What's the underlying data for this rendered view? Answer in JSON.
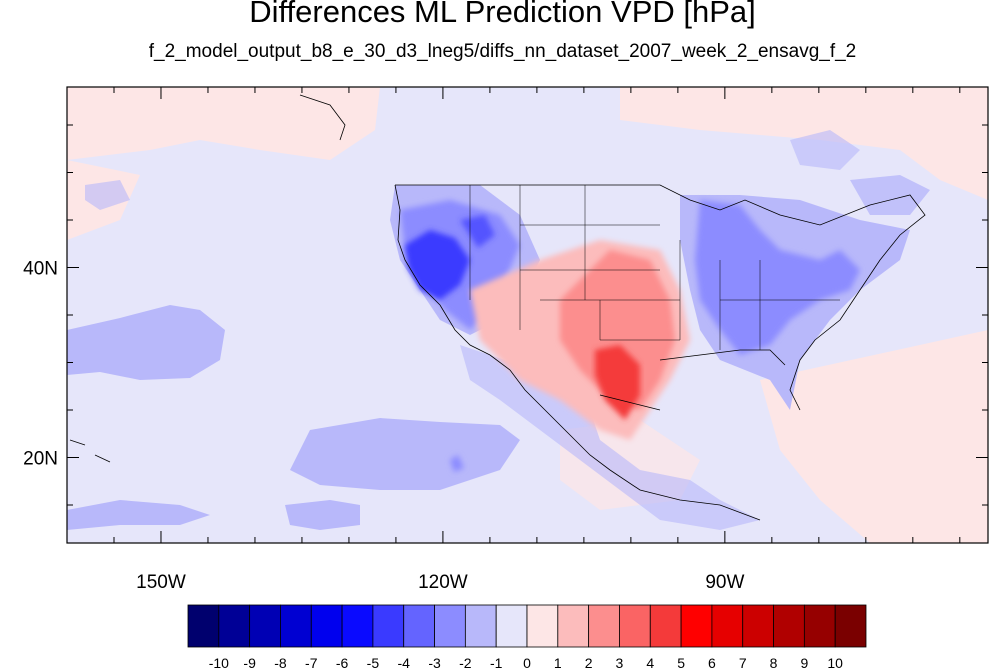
{
  "title": "Differences ML Prediction VPD [hPa]",
  "subtitle": "f_2_model_output_b8_e_30_d3_lneg5/diffs_nn_dataset_2007_week_2_ensavg_f_2",
  "map": {
    "lon_range": [
      -160,
      -62
    ],
    "lat_range": [
      11,
      59
    ],
    "lon_ticks": [
      {
        "value": -150,
        "label": "150W"
      },
      {
        "value": -120,
        "label": "120W"
      },
      {
        "value": -90,
        "label": "90W"
      }
    ],
    "lat_ticks": [
      {
        "value": 40,
        "label": "40N"
      },
      {
        "value": 20,
        "label": "20N"
      }
    ]
  },
  "colorbar": {
    "labels": [
      "-10",
      "-9",
      "-8",
      "-7",
      "-6",
      "-5",
      "-4",
      "-3",
      "-2",
      "-1",
      "0",
      "1",
      "2",
      "3",
      "4",
      "5",
      "6",
      "7",
      "8",
      "9",
      "10"
    ],
    "colors": [
      "#00006e",
      "#000096",
      "#0000b4",
      "#0000d2",
      "#0000ee",
      "#0a0aff",
      "#3a3aff",
      "#6464ff",
      "#8c8cff",
      "#b8b8fa",
      "#e6e6fa",
      "#fde6e6",
      "#fcbcbc",
      "#fc8e8e",
      "#fa6464",
      "#f43a3a",
      "#ff0000",
      "#e60000",
      "#cc0000",
      "#b00000",
      "#960000",
      "#7a0000"
    ]
  },
  "background_color": "#e6e6fa"
}
